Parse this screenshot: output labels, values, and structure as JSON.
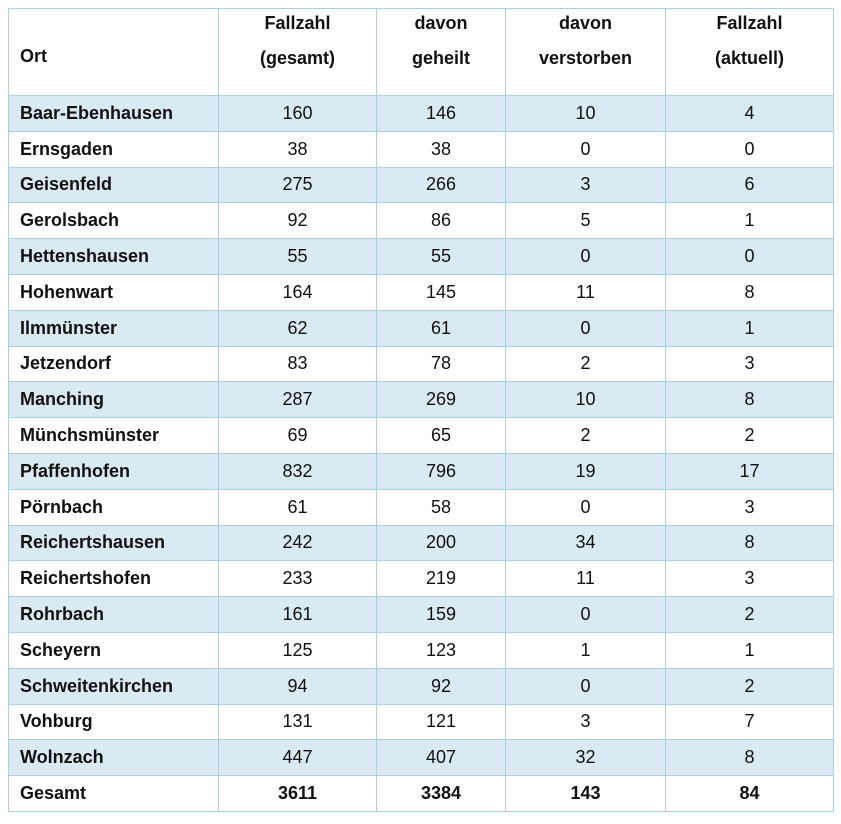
{
  "table": {
    "header": [
      [
        "Ort"
      ],
      [
        "Fallzahl",
        "(gesamt)"
      ],
      [
        "davon",
        "geheilt"
      ],
      [
        "davon",
        "verstorben"
      ],
      [
        "Fallzahl",
        "(aktuell)"
      ]
    ],
    "rows": [
      [
        "Baar-Ebenhausen",
        160,
        146,
        10,
        4
      ],
      [
        "Ernsgaden",
        38,
        38,
        0,
        0
      ],
      [
        "Geisenfeld",
        275,
        266,
        3,
        6
      ],
      [
        "Gerolsbach",
        92,
        86,
        5,
        1
      ],
      [
        "Hettenshausen",
        55,
        55,
        0,
        0
      ],
      [
        "Hohenwart",
        164,
        145,
        11,
        8
      ],
      [
        "Ilmmünster",
        62,
        61,
        0,
        1
      ],
      [
        "Jetzendorf",
        83,
        78,
        2,
        3
      ],
      [
        "Manching",
        287,
        269,
        10,
        8
      ],
      [
        "Münchsmünster",
        69,
        65,
        2,
        2
      ],
      [
        "Pfaffenhofen",
        832,
        796,
        19,
        17
      ],
      [
        "Pörnbach",
        61,
        58,
        0,
        3
      ],
      [
        "Reichertshausen",
        242,
        200,
        34,
        8
      ],
      [
        "Reichertshofen",
        233,
        219,
        11,
        3
      ],
      [
        "Rohrbach",
        161,
        159,
        0,
        2
      ],
      [
        "Scheyern",
        125,
        123,
        1,
        1
      ],
      [
        "Schweitenkirchen",
        94,
        92,
        0,
        2
      ],
      [
        "Vohburg",
        131,
        121,
        3,
        7
      ],
      [
        "Wolnzach",
        447,
        407,
        32,
        8
      ]
    ],
    "total": [
      "Gesamt",
      3611,
      3384,
      143,
      84
    ]
  }
}
